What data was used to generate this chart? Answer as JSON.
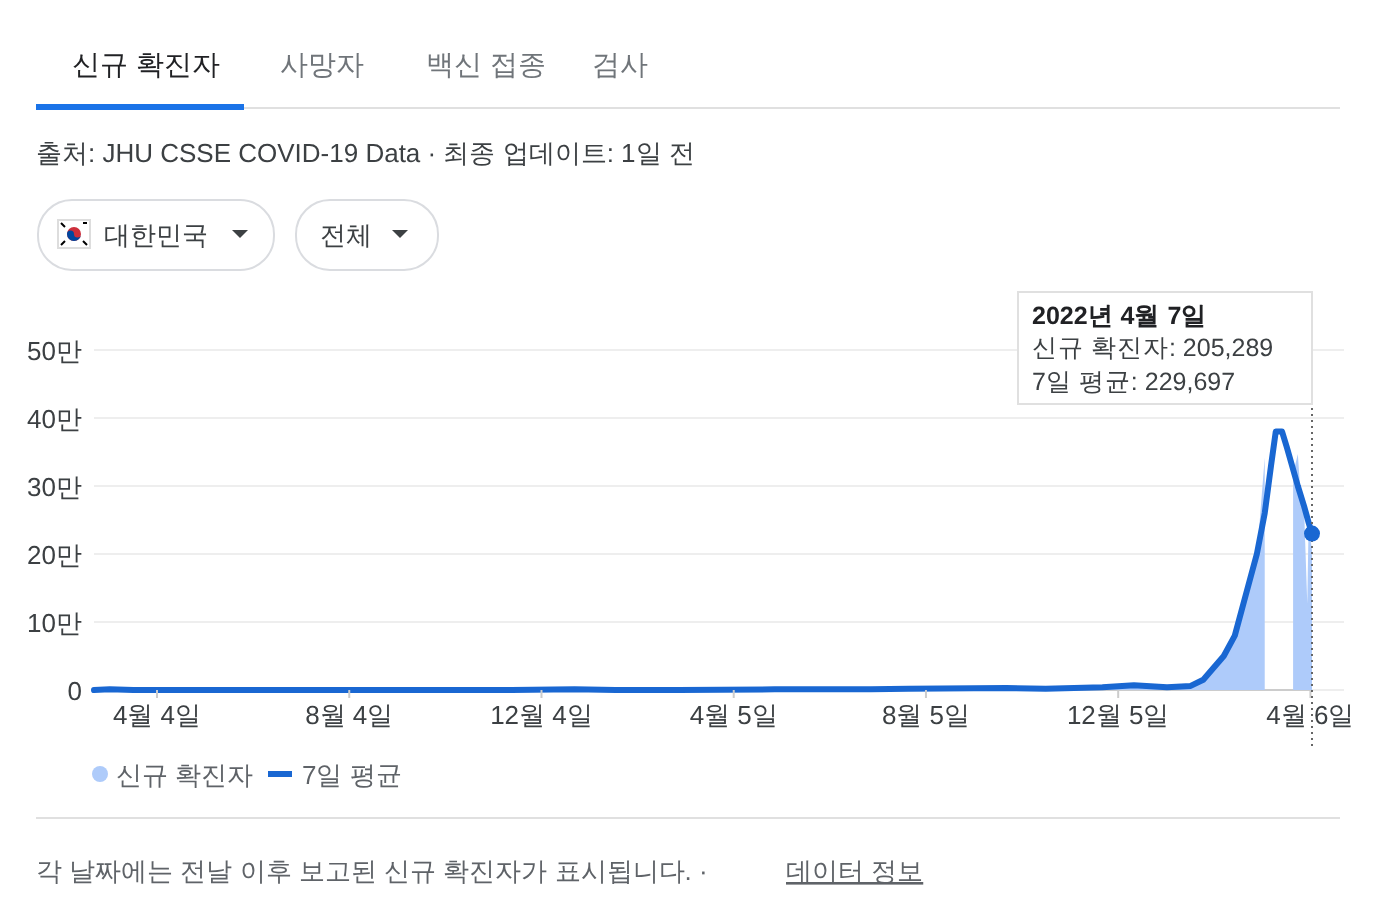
{
  "chart_data": {
    "type": "area",
    "annotations": [
      "신규 확진자",
      "사망자",
      "백신 접종",
      "검사",
      "출처: JHU CSSE COVID-19 Data · 최종 업데이트: 1일 전",
      "대한민국",
      "전체",
      "각 날짜에는 전날 이후 보고된 신규 확진자가 표시됩니다. ·",
      "데이터 정보",
      "2022년 4월 7일",
      "신규 확진자: 205,289",
      "7일 평균: 229,697"
    ],
    "xlim": [
      "2020-02-24",
      "2022-04-07"
    ],
    "xticks": [
      {
        "value": "2020-04-04",
        "label": "4월 4일"
      },
      {
        "value": "2020-08-04",
        "label": "8월 4일"
      },
      {
        "value": "2020-12-04",
        "label": "12월 4일"
      },
      {
        "value": "2021-04-05",
        "label": "4월 5일"
      },
      {
        "value": "2021-08-05",
        "label": "8월 5일"
      },
      {
        "value": "2021-12-05",
        "label": "12월 5일"
      },
      {
        "value": "2022-04-06",
        "label": "4월 6일"
      }
    ],
    "ylim": [
      0,
      50
    ],
    "yticks": [
      0,
      {
        "value": 10,
        "label": "10만"
      },
      {
        "value": 20,
        "label": "20만"
      },
      {
        "value": 30,
        "label": "30만"
      },
      {
        "value": 40,
        "label": "40만"
      },
      {
        "value": 50,
        "label": "50만"
      }
    ],
    "grid": "y",
    "legend": "bottom left",
    "ref_lines": [
      {
        "axis": "x",
        "value": "2022-04-07",
        "label": null,
        "color": "#666666",
        "line_style": "dotted"
      }
    ],
    "series": [
      {
        "name": "신규 확진자",
        "color": "#aecbfa",
        "x": [
          "2020-02-24",
          "2020-03-01",
          "2020-03-20",
          "2020-05-01",
          "2020-08-28",
          "2020-10-01",
          "2020-12-25",
          "2021-01-20",
          "2021-05-01",
          "2021-07-25",
          "2021-09-25",
          "2021-10-20",
          "2021-12-15",
          "2022-01-05",
          "2022-01-20",
          "2022-01-29",
          "2022-02-05",
          "2022-02-12",
          "2022-02-19",
          "2022-02-26",
          "2022-03-03",
          "2022-03-05",
          "2022-03-08",
          "2022-03-10",
          "2022-03-24",
          "2022-03-26",
          "2022-03-29",
          "2022-03-31",
          "2022-04-02",
          "2022-04-04",
          "2022-04-05",
          "2022-04-06",
          "2022-04-07"
        ],
        "values": [
          0,
          0.1,
          0,
          0,
          0,
          0,
          0.1,
          0,
          0.1,
          0.2,
          0.3,
          0.2,
          0.8,
          0.4,
          0.7,
          1.8,
          3.8,
          5.4,
          10.2,
          16.6,
          19.8,
          25.4,
          34.2,
          null,
          null,
          31.8,
          34.7,
          28,
          26.4,
          12.7,
          26.6,
          22.4,
          20.5
        ]
      },
      {
        "name": "7일 평균",
        "type": "line",
        "color": "#1967d2",
        "x": [
          "2020-02-24",
          "2020-03-05",
          "2020-03-20",
          "2020-05-01",
          "2020-08-01",
          "2020-08-28",
          "2020-09-20",
          "2020-11-15",
          "2020-12-25",
          "2021-01-20",
          "2021-03-01",
          "2021-05-01",
          "2021-07-01",
          "2021-07-25",
          "2021-09-25",
          "2021-10-20",
          "2021-11-25",
          "2021-12-15",
          "2022-01-05",
          "2022-01-20",
          "2022-01-28",
          "2022-02-10",
          "2022-02-17",
          "2022-02-24",
          "2022-03-03",
          "2022-03-08",
          "2022-03-12",
          "2022-03-15",
          "2022-03-19",
          "2022-03-22",
          "2022-03-29",
          "2022-04-02",
          "2022-04-05",
          "2022-04-07"
        ],
        "values": [
          0,
          0.1,
          0,
          0,
          0,
          0,
          0,
          0,
          0.1,
          0,
          0,
          0.1,
          0.1,
          0.2,
          0.3,
          0.2,
          0.4,
          0.7,
          0.4,
          0.6,
          1.5,
          5,
          8,
          14,
          20,
          26,
          33,
          38,
          38,
          35.7,
          30,
          27,
          24.5,
          23
        ]
      }
    ]
  }
}
